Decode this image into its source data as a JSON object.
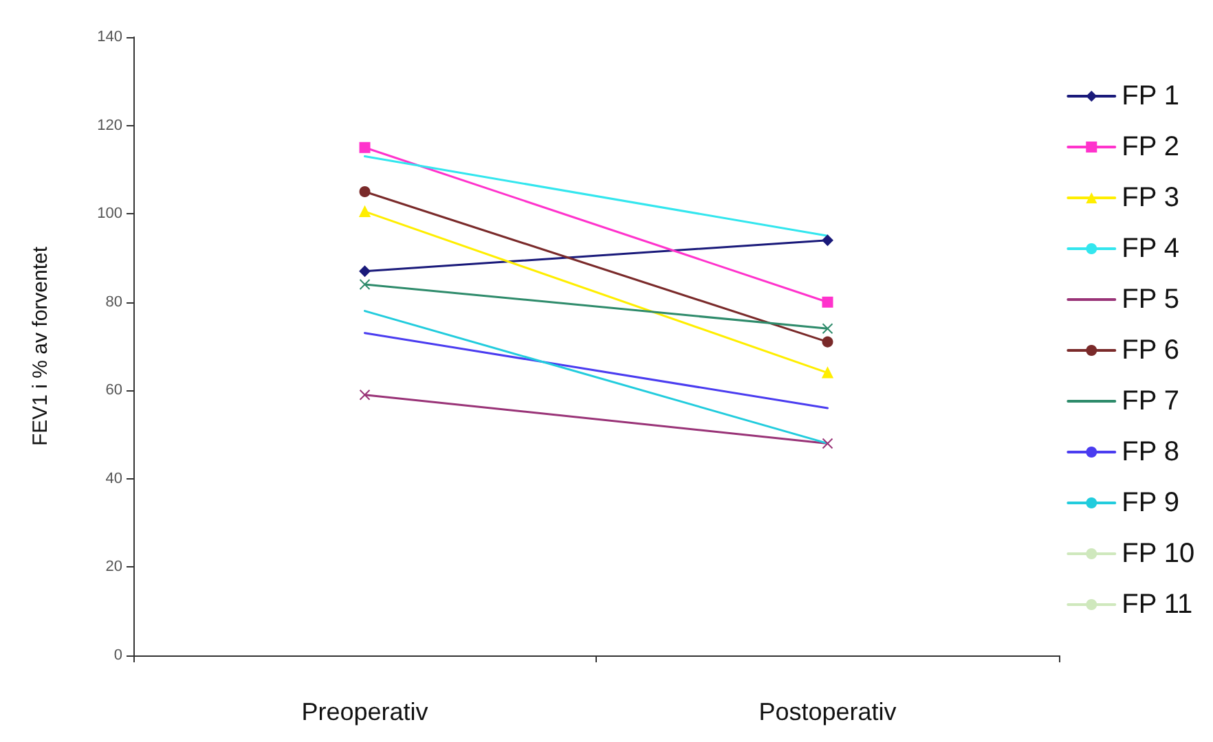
{
  "chart_data": {
    "type": "line",
    "ylabel": "FEV1 i % av forventet",
    "categories": [
      "Preoperativ",
      "Postoperativ"
    ],
    "ylim": [
      0,
      140
    ],
    "yticks": [
      0,
      20,
      40,
      60,
      80,
      100,
      120,
      140
    ],
    "grid": false,
    "legend": "right",
    "line_style": "solid",
    "series": [
      {
        "name": "FP 1",
        "color": "#1a1a7a",
        "marker": "diamond",
        "values": [
          87,
          94
        ]
      },
      {
        "name": "FP 2",
        "color": "#ff33cc",
        "marker": "square",
        "values": [
          115,
          80
        ]
      },
      {
        "name": "FP 3",
        "color": "#ffee00",
        "marker": "triangle",
        "values": [
          100.5,
          64
        ]
      },
      {
        "name": "FP 4",
        "color": "#33e6ee",
        "marker": "none",
        "values": [
          113,
          95
        ]
      },
      {
        "name": "FP 5",
        "color": "#993377",
        "marker": "cross",
        "values": [
          59,
          48
        ]
      },
      {
        "name": "FP 6",
        "color": "#7a2a2a",
        "marker": "circle",
        "values": [
          105,
          71
        ]
      },
      {
        "name": "FP 7",
        "color": "#2e8b6b",
        "marker": "cross",
        "values": [
          84,
          74
        ]
      },
      {
        "name": "FP 8",
        "color": "#4a3cf0",
        "marker": "none",
        "values": [
          73,
          56
        ]
      },
      {
        "name": "FP 9",
        "color": "#22ccdd",
        "marker": "none",
        "values": [
          78,
          48
        ]
      },
      {
        "name": "FP 10",
        "color": "#cfe8bd",
        "marker": "none",
        "values": [
          null,
          null
        ]
      },
      {
        "name": "FP 11",
        "color": "#cfe8bd",
        "marker": "none",
        "values": [
          null,
          null
        ]
      }
    ]
  }
}
